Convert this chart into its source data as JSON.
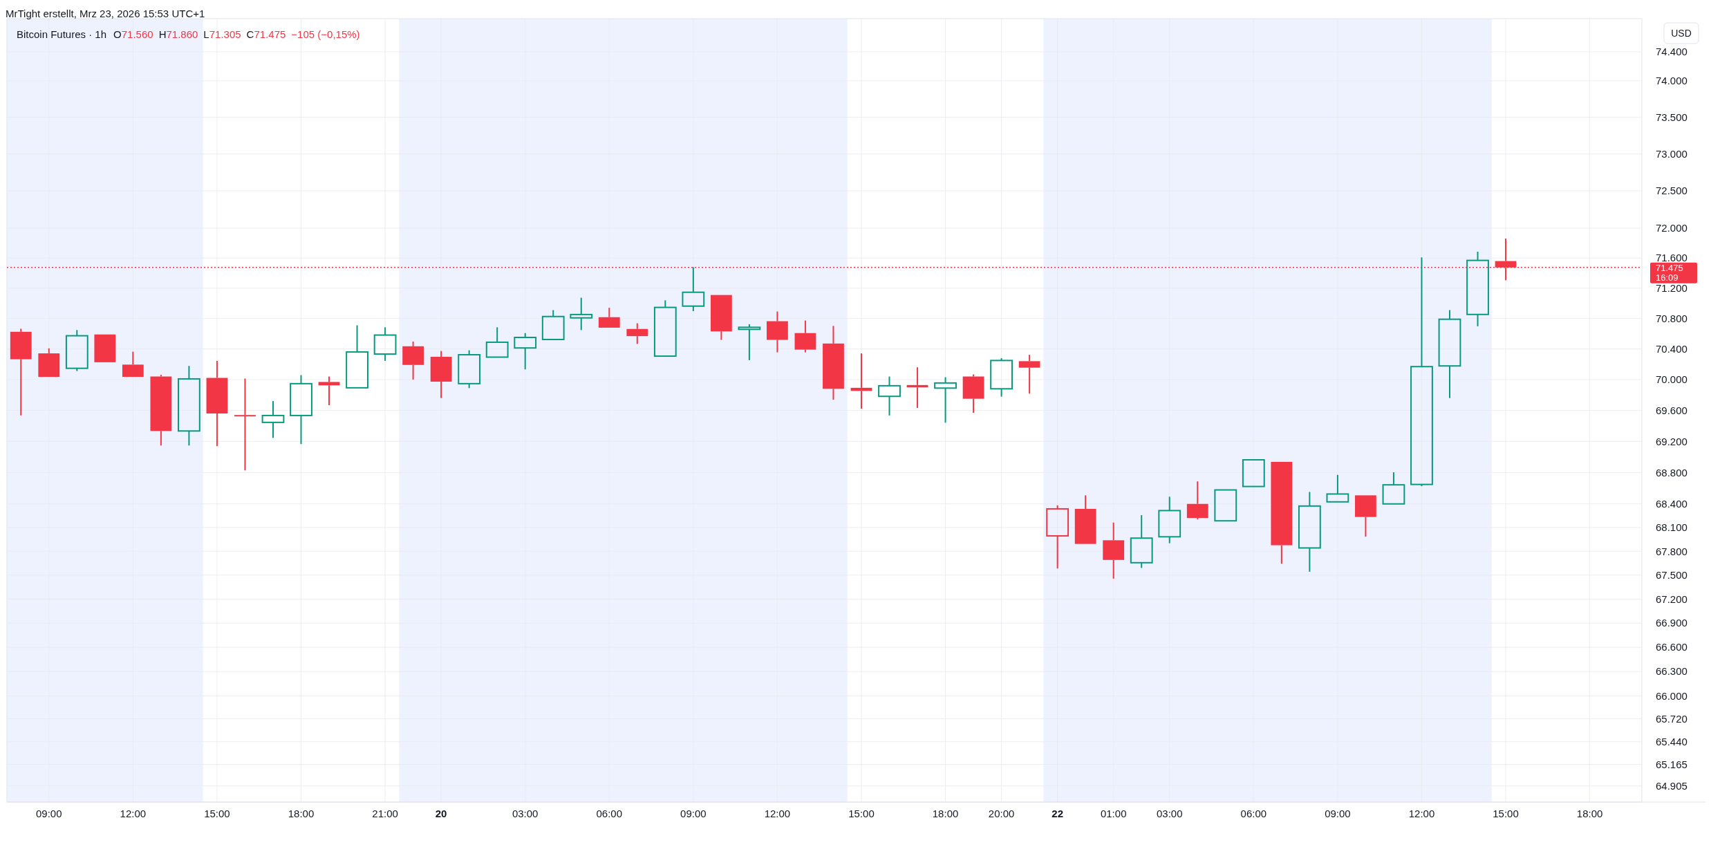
{
  "chart_data": {
    "type": "candlestick",
    "title": "Bitcoin Futures · 1h",
    "subtitle": "MrTight erstellt, Mrz 23, 2026 15:53 UTC+1",
    "ylabel": "USD",
    "annotations": [
      "O71.560",
      "H71.860",
      "L71.305",
      "C71.475",
      "−105 (−0,15%)",
      "16:09"
    ],
    "categories": [
      null,
      "09:00",
      null,
      null,
      "12:00",
      null,
      null,
      "15:00",
      null,
      null,
      "18:00",
      null,
      null,
      "21:00",
      null,
      "20",
      null,
      null,
      "03:00",
      null,
      null,
      "06:00",
      null,
      null,
      "09:00",
      null,
      null,
      "12:00",
      null,
      null,
      "15:00",
      null,
      null,
      "18:00",
      null,
      "20:00",
      null,
      "22",
      null,
      "01:00",
      null,
      "03:00",
      null,
      null,
      "06:00",
      null,
      null,
      "09:00",
      null,
      null,
      "12:00",
      null,
      null,
      "15:00",
      null,
      null,
      "18:00",
      null
    ],
    "ohlc": [
      [
        70625,
        70665,
        69535,
        70265
      ],
      [
        70342,
        70408,
        70018,
        70035
      ],
      [
        70147,
        70648,
        70111,
        70573
      ],
      [
        70590,
        70590,
        70209,
        70226
      ],
      [
        70195,
        70364,
        70018,
        70035
      ],
      [
        70040,
        70062,
        69147,
        69334
      ],
      [
        69334,
        70178,
        69147,
        70009
      ],
      [
        70022,
        70244,
        69139,
        69560
      ],
      [
        69540,
        70013,
        68828,
        69535
      ],
      [
        69445,
        69720,
        69245,
        69534
      ],
      [
        69534,
        70058,
        69165,
        69947
      ],
      [
        69969,
        70040,
        69667,
        69925
      ],
      [
        69893,
        70710,
        69893,
        70360
      ],
      [
        70333,
        70684,
        70244,
        70582
      ],
      [
        70435,
        70497,
        70000,
        70191
      ],
      [
        70297,
        70373,
        69760,
        69973
      ],
      [
        69947,
        70382,
        69889,
        70324
      ],
      [
        70293,
        70684,
        70293,
        70488
      ],
      [
        70413,
        70608,
        70133,
        70551
      ],
      [
        70524,
        70910,
        70511,
        70826
      ],
      [
        70808,
        71074,
        70648,
        70852
      ],
      [
        70817,
        70941,
        70679,
        70679
      ],
      [
        70662,
        70737,
        70466,
        70568
      ],
      [
        70306,
        71039,
        70306,
        70946
      ],
      [
        70963,
        71479,
        70897,
        71146
      ],
      [
        71110,
        71110,
        70519,
        70630
      ],
      [
        70657,
        70724,
        70253,
        70684
      ],
      [
        70764,
        70892,
        70355,
        70519
      ],
      [
        70608,
        70773,
        70355,
        70391
      ],
      [
        70471,
        70702,
        69738,
        69880
      ],
      [
        69893,
        70342,
        69623,
        69853
      ],
      [
        69782,
        70040,
        69534,
        69920
      ],
      [
        69929,
        70160,
        69632,
        69898
      ],
      [
        69889,
        70031,
        69441,
        69956
      ],
      [
        70040,
        70067,
        69569,
        69751
      ],
      [
        69880,
        70280,
        69778,
        70249
      ],
      [
        70240,
        70324,
        69818,
        70155
      ],
      [
        67994,
        68382,
        67583,
        68337
      ],
      [
        68337,
        68509,
        67876,
        67893
      ],
      [
        67939,
        68163,
        67456,
        67691
      ],
      [
        67656,
        68257,
        67591,
        67966
      ],
      [
        67983,
        68492,
        67902,
        68315
      ],
      [
        68400,
        68687,
        68203,
        68221
      ],
      [
        68185,
        68578,
        68185,
        68578
      ],
      [
        68622,
        68963,
        68622,
        68963
      ],
      [
        68937,
        68937,
        67643,
        67876
      ],
      [
        67842,
        68552,
        67543,
        68373
      ],
      [
        68426,
        68770,
        68426,
        68526
      ],
      [
        68509,
        68509,
        67985,
        68234
      ],
      [
        68400,
        68804,
        68400,
        68643
      ],
      [
        68648,
        71609,
        68626,
        70169
      ],
      [
        70178,
        70910,
        69760,
        70790
      ],
      [
        70853,
        71685,
        70697,
        71569
      ],
      [
        71560,
        71860,
        71305,
        71475
      ],
      null,
      null,
      null,
      null
    ],
    "colors": [
      "#f23645",
      "#f23645",
      "#089981",
      "#f23645",
      "#f23645",
      "#f23645",
      "#089981",
      "#f23645",
      "#f23645",
      "#089981",
      "#089981",
      "#f23645",
      "#089981",
      "#089981",
      "#f23645",
      "#f23645",
      "#089981",
      "#089981",
      "#089981",
      "#089981",
      "#089981",
      "#f23645",
      "#f23645",
      "#089981",
      "#089981",
      "#f23645",
      "#089981",
      "#f23645",
      "#f23645",
      "#f23645",
      "#f23645",
      "#089981",
      "#f23645",
      "#089981",
      "#f23645",
      "#089981",
      "#f23645",
      "#f23645",
      "#f23645",
      "#f23645",
      "#089981",
      "#089981",
      "#f23645",
      "#089981",
      "#089981",
      "#f23645",
      "#089981",
      "#089981",
      "#f23645",
      "#089981",
      "#089981",
      "#089981",
      "#089981",
      "#f23645",
      null,
      null,
      null,
      null
    ],
    "log": true,
    "grid": true,
    "ylim": [
      64710,
      74860
    ],
    "yticks": [
      {
        "value": 64905,
        "label": "64.905"
      },
      {
        "value": 65165,
        "label": "65.165"
      },
      {
        "value": 65440,
        "label": "65.440"
      },
      {
        "value": 65720,
        "label": "65.720"
      },
      {
        "value": 66000,
        "label": "66.000"
      },
      {
        "value": 66300,
        "label": "66.300"
      },
      {
        "value": 66600,
        "label": "66.600"
      },
      {
        "value": 66900,
        "label": "66.900"
      },
      {
        "value": 67200,
        "label": "67.200"
      },
      {
        "value": 67500,
        "label": "67.500"
      },
      {
        "value": 67800,
        "label": "67.800"
      },
      {
        "value": 68100,
        "label": "68.100"
      },
      {
        "value": 68400,
        "label": "68.400"
      },
      {
        "value": 68800,
        "label": "68.800"
      },
      {
        "value": 69200,
        "label": "69.200"
      },
      {
        "value": 69600,
        "label": "69.600"
      },
      {
        "value": 70000,
        "label": "70.000"
      },
      {
        "value": 70400,
        "label": "70.400"
      },
      {
        "value": 70800,
        "label": "70.800"
      },
      {
        "value": 71200,
        "label": "71.200"
      },
      {
        "value": 71600,
        "label": "71.600"
      },
      {
        "value": 72000,
        "label": "72.000"
      },
      {
        "value": 72500,
        "label": "72.500"
      },
      {
        "value": 73000,
        "label": "73.000"
      },
      {
        "value": 73500,
        "label": "73.500"
      },
      {
        "value": 74000,
        "label": "74.000"
      },
      {
        "value": 74400,
        "label": "74.400"
      }
    ],
    "ref_lines": [
      {
        "axis": "y",
        "value": 71475,
        "label": "71.475",
        "color": "#f23645",
        "line_style": "dotted"
      }
    ]
  }
}
